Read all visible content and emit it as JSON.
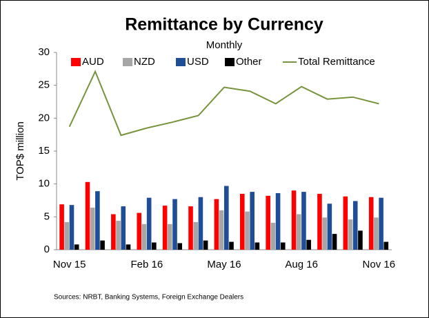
{
  "chart_data": {
    "type": "bar_line",
    "title": "Remittance by Currency",
    "subtitle": "Monthly",
    "y_label": "TOP$ million",
    "source": "Sources: NRBT, Banking Systems, Foreign Exchange Dealers",
    "categories": [
      "Nov 15",
      null,
      null,
      "Feb 16",
      null,
      null,
      "May 16",
      null,
      null,
      "Aug 16",
      null,
      null,
      "Nov 16"
    ],
    "series": [
      {
        "name": "AUD",
        "color": "#ff0000",
        "values": [
          6.9,
          10.3,
          5.4,
          5.6,
          6.7,
          6.6,
          7.7,
          8.5,
          8.2,
          9.0,
          8.5,
          8.1,
          8.0
        ]
      },
      {
        "name": "NZD",
        "color": "#a6a6a6",
        "values": [
          4.2,
          6.4,
          4.4,
          3.9,
          3.9,
          4.2,
          6.0,
          5.8,
          4.1,
          5.4,
          4.9,
          4.6,
          4.9
        ]
      },
      {
        "name": "USD",
        "color": "#1f4e96",
        "values": [
          6.8,
          8.9,
          6.6,
          7.9,
          7.7,
          8.0,
          9.7,
          8.8,
          8.6,
          8.8,
          7.0,
          7.4,
          7.9
        ]
      },
      {
        "name": "Other",
        "color": "#000000",
        "values": [
          0.8,
          1.4,
          0.8,
          1.1,
          1.0,
          1.4,
          1.2,
          1.1,
          1.1,
          1.5,
          2.4,
          2.9,
          1.2
        ]
      },
      {
        "name": "Total Remittance",
        "color": "#77933c",
        "type": "line",
        "values": [
          18.7,
          27.1,
          17.4,
          18.5,
          19.4,
          20.4,
          24.7,
          24.1,
          22.2,
          24.8,
          22.9,
          23.2,
          22.2
        ]
      }
    ],
    "ylim": [
      0,
      30
    ],
    "yticks": [
      0,
      5,
      10,
      15,
      20,
      25,
      30
    ],
    "grid": false
  }
}
